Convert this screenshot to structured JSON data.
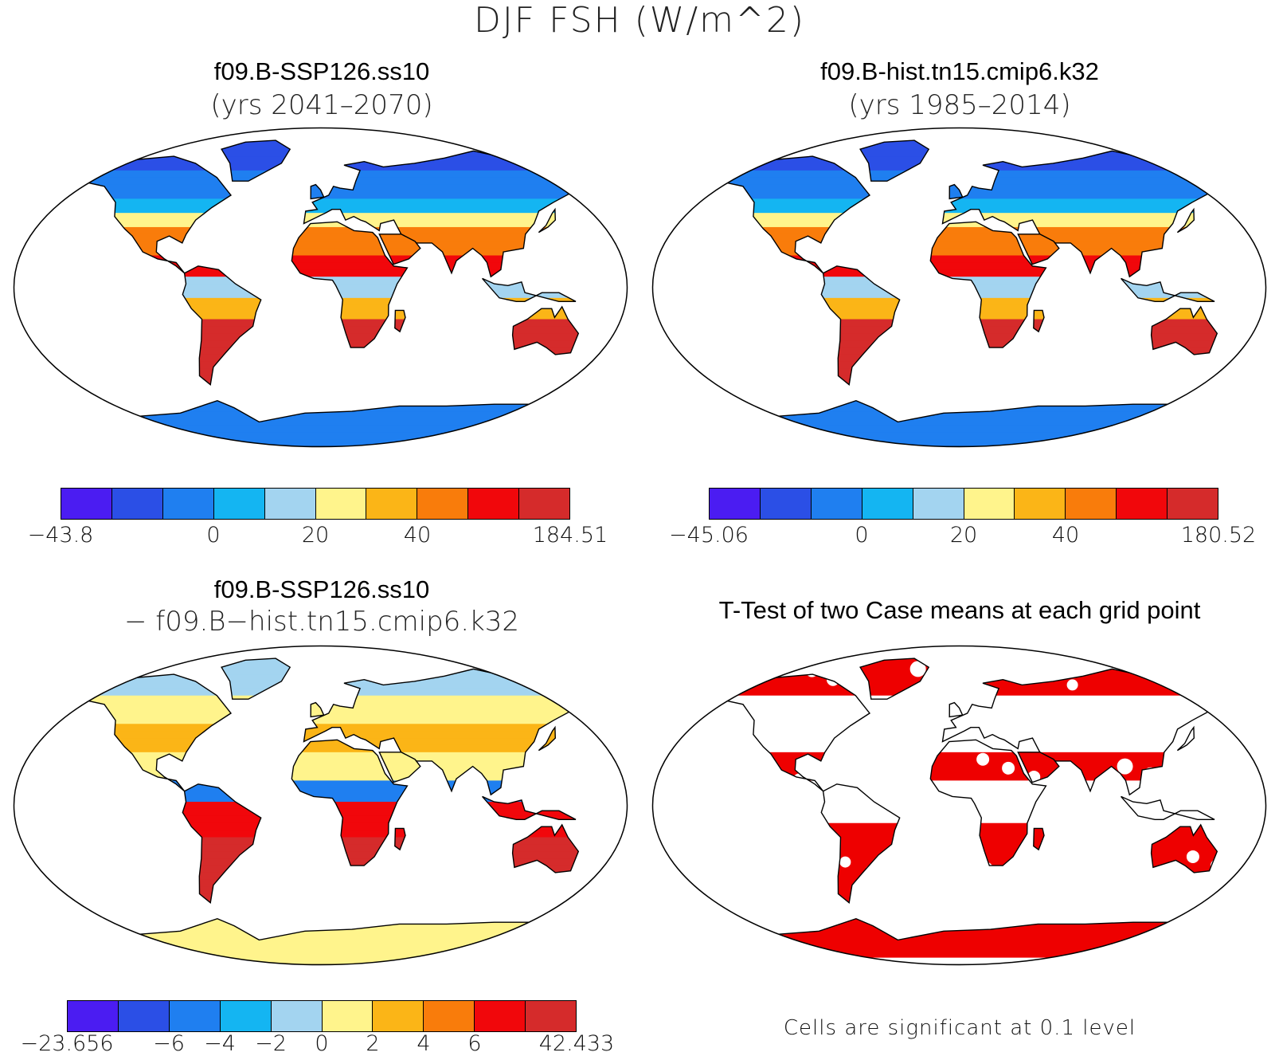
{
  "figure": {
    "title": "DJF FSH (W/m^2)"
  },
  "panels": {
    "top_left": {
      "title": "f09.B-SSP126.ss10",
      "subtitle": "(yrs 2041–2070)",
      "colorbar": {
        "colors": [
          "#4b1cf2",
          "#2b4fe6",
          "#1f7ff0",
          "#14b5f2",
          "#a3d4f0",
          "#fff48c",
          "#fbb517",
          "#f97c0b",
          "#f1070b",
          "#d52b2b"
        ],
        "labels": [
          "−43.8",
          "0",
          "20",
          "40",
          "184.51"
        ],
        "label_positions": [
          0,
          3,
          5,
          7,
          10
        ]
      }
    },
    "top_right": {
      "title": "f09.B-hist.tn15.cmip6.k32",
      "subtitle": "(yrs 1985–2014)",
      "colorbar": {
        "colors": [
          "#4b1cf2",
          "#2b4fe6",
          "#1f7ff0",
          "#14b5f2",
          "#a3d4f0",
          "#fff48c",
          "#fbb517",
          "#f97c0b",
          "#f1070b",
          "#d52b2b"
        ],
        "labels": [
          "−45.06",
          "0",
          "20",
          "40",
          "180.52"
        ],
        "label_positions": [
          0,
          3,
          5,
          7,
          10
        ]
      }
    },
    "bottom_left": {
      "title": "f09.B-SSP126.ss10",
      "subtitle": "− f09.B−hist.tn15.cmip6.k32",
      "colorbar": {
        "colors": [
          "#4b1cf2",
          "#2b4fe6",
          "#1f7ff0",
          "#14b5f2",
          "#a3d4f0",
          "#fff48c",
          "#fbb517",
          "#f97c0b",
          "#f1070b",
          "#d52b2b"
        ],
        "labels": [
          "−23.656",
          "−6",
          "−4",
          "−2",
          "0",
          "2",
          "4",
          "6",
          "42.433"
        ],
        "label_positions": [
          0,
          2,
          3,
          4,
          5,
          6,
          7,
          8,
          10
        ]
      }
    },
    "bottom_right": {
      "title": "T-Test of two Case means at each grid point",
      "note": "Cells are significant at 0.1 level",
      "significant_color": "#ee0000"
    }
  }
}
